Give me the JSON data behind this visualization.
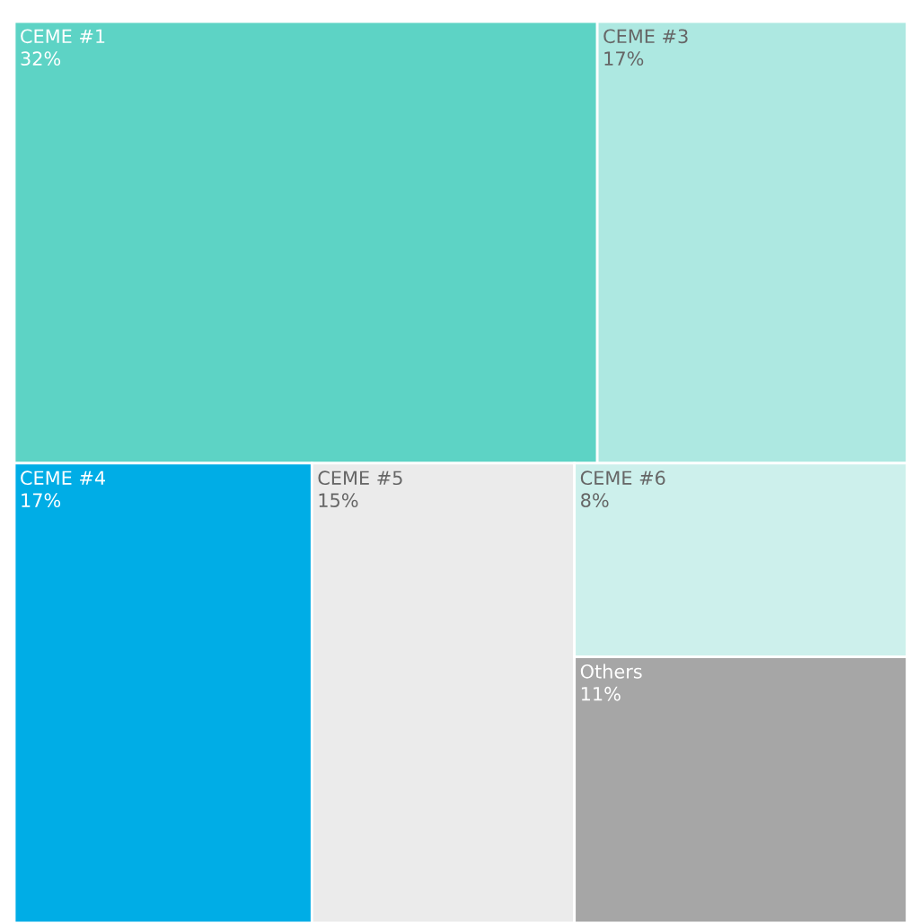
{
  "chart_data": {
    "type": "other",
    "categories": [
      "CEME #1",
      "CEME #3",
      "CEME #4",
      "CEME #5",
      "CEME #6",
      "Others"
    ],
    "values": [
      32,
      17,
      17,
      15,
      8,
      11
    ],
    "value_labels": [
      "32%",
      "17%",
      "17%",
      "15%",
      "8%",
      "11%"
    ],
    "colors": [
      "#5dd3c5",
      "#ade8e1",
      "#00ade6",
      "#ebebeb",
      "#cdf0ec",
      "#a6a6a6"
    ]
  }
}
